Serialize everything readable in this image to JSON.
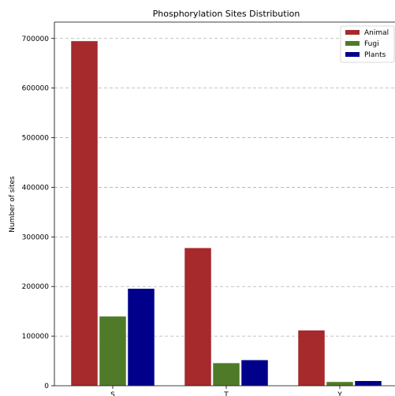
{
  "chart_data": {
    "type": "bar",
    "title": "Phosphorylation Sites Distribution",
    "xlabel": "",
    "ylabel": "Number of sites",
    "categories": [
      "S",
      "T",
      "Y"
    ],
    "series": [
      {
        "name": "Animal",
        "color": "#a6292b",
        "values": [
          695000,
          278000,
          112000
        ]
      },
      {
        "name": "Fugi",
        "color": "#4f7a28",
        "values": [
          140000,
          46000,
          8000
        ]
      },
      {
        "name": "Plants",
        "color": "#00008b",
        "values": [
          196000,
          52000,
          10000
        ]
      }
    ],
    "ylim": [
      0,
      733000
    ],
    "yticks": [
      0,
      100000,
      200000,
      300000,
      400000,
      500000,
      600000,
      700000
    ],
    "ytick_labels": [
      "0",
      "100000",
      "200000",
      "300000",
      "400000",
      "500000",
      "600000",
      "700000"
    ],
    "grid": {
      "y": true,
      "x": false,
      "style": "dashed"
    },
    "legend_position": "top-right"
  }
}
